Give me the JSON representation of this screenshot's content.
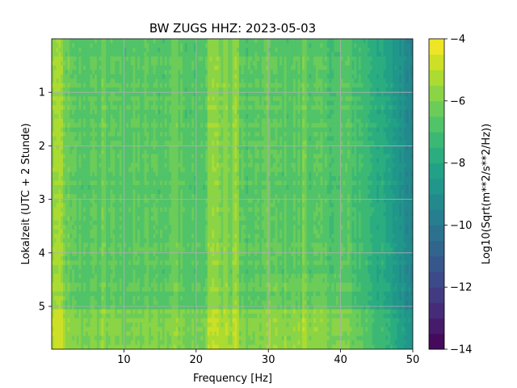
{
  "chart_data": {
    "type": "heatmap",
    "title": "BW ZUGS  HHZ: 2023-05-03",
    "xlabel": "Frequency [Hz]",
    "ylabel": "Lokalzeit (UTC + 2 Stunde)",
    "xlim": [
      0.0,
      50.0
    ],
    "ylim": [
      5.8,
      0.0
    ],
    "x_ticks": [
      10,
      20,
      30,
      40,
      50
    ],
    "y_ticks": [
      1,
      2,
      3,
      4,
      5
    ],
    "grid": true,
    "colormap": "viridis",
    "colorbar": {
      "label": "Log10(Sqrt(m**2/s**2/Hz))",
      "min": -14,
      "max": -4,
      "ticks": [
        -14,
        -12,
        -10,
        -8,
        -6,
        -4
      ],
      "levels": 20
    },
    "notable_features": {
      "high_energy_band_hz": [
        21.5,
        26.0
      ],
      "spectral_rolloff_hz": [
        40.0,
        50.0
      ],
      "elevated_rows_hours": [
        5.05,
        5.8
      ]
    }
  }
}
